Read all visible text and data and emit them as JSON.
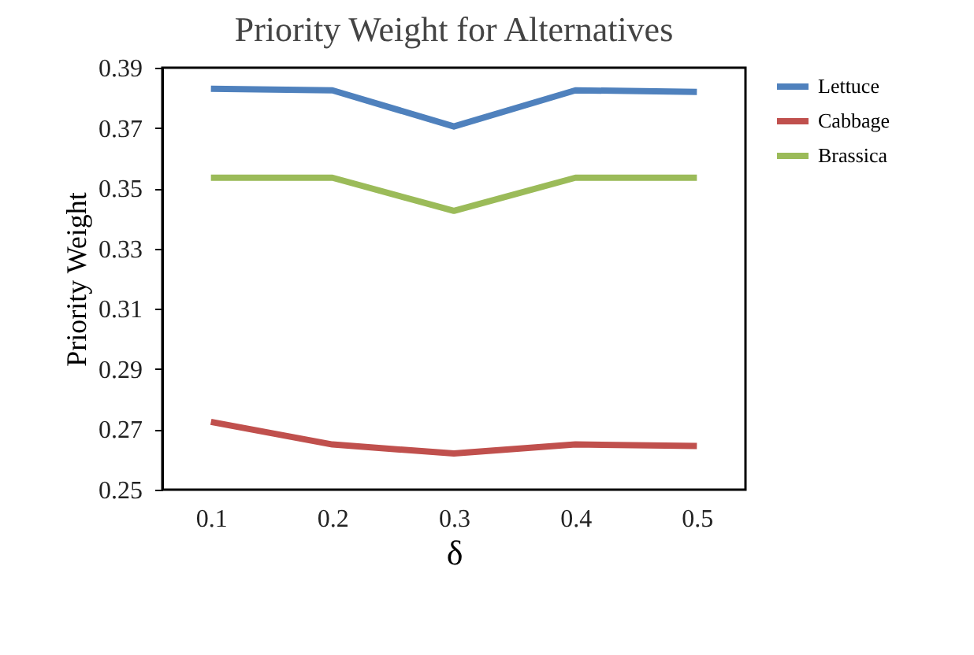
{
  "chart_data": {
    "type": "line",
    "title": "Priority Weight for Alternatives",
    "xlabel": "δ",
    "ylabel": "Priority Weight",
    "categories": [
      "0.1",
      "0.2",
      "0.3",
      "0.4",
      "0.5"
    ],
    "series": [
      {
        "name": "Lettuce",
        "color": "#4f81bd",
        "values": [
          0.383,
          0.3825,
          0.3705,
          0.3825,
          0.382
        ]
      },
      {
        "name": "Cabbage",
        "color": "#c0504d",
        "values": [
          0.2725,
          0.265,
          0.262,
          0.265,
          0.2645
        ]
      },
      {
        "name": "Brassica",
        "color": "#9bbb59",
        "values": [
          0.3535,
          0.3535,
          0.3425,
          0.3535,
          0.3535
        ]
      }
    ],
    "ylim": [
      0.25,
      0.39
    ],
    "yticks": [
      0.25,
      0.27,
      0.29,
      0.31,
      0.33,
      0.35,
      0.37,
      0.39
    ],
    "grid": false,
    "legend": "top right",
    "marker": "none",
    "line_style": "solid"
  }
}
